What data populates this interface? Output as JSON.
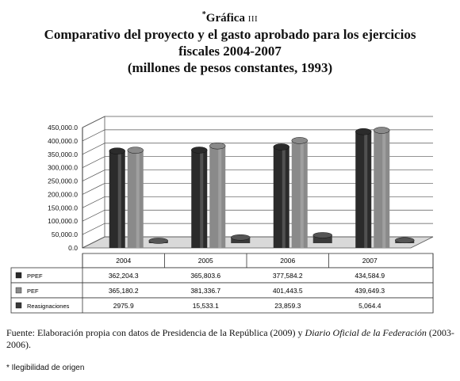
{
  "title": {
    "asterisk": "*",
    "grafica": "Gráfica",
    "numeral": "III",
    "line1": "Comparativo del proyecto y el gasto aprobado para los ejercicios",
    "line2": "fiscales 2004-2007",
    "line3": "(millones de pesos constantes, 1993)"
  },
  "chart_data": {
    "type": "bar",
    "style": "3d-clustered-column-with-data-table",
    "categories": [
      "2004",
      "2005",
      "2006",
      "2007"
    ],
    "series": [
      {
        "name": "PPEF",
        "values": [
          362204.3,
          365803.6,
          377584.2,
          434584.9
        ],
        "labels": [
          "362,204.3",
          "365,803.6",
          "377,584.2",
          "434,584.9"
        ],
        "color": "#2b2b2b",
        "marker": "■"
      },
      {
        "name": "PEF",
        "values": [
          365180.2,
          381336.7,
          401443.5,
          439649.3
        ],
        "labels": [
          "365,180.2",
          "381,336.7",
          "401,443.5",
          "439,649.3"
        ],
        "color": "#8a8a8a",
        "marker": "■"
      },
      {
        "name": "Reasignaciones",
        "values": [
          2975.9,
          15533.1,
          23859.3,
          5064.4
        ],
        "labels": [
          "2975.9",
          "15,533.1",
          "23,859.3",
          "5,064.4"
        ],
        "color": "#3a3a3a",
        "marker": "■"
      }
    ],
    "yticks": [
      "0.0",
      "50,000.0",
      "100,000.0",
      "150,000.0",
      "200,000.0",
      "250,000.0",
      "300,000.0",
      "350,000.0",
      "400,000.0",
      "450,000.0"
    ],
    "ylim": [
      0,
      450000
    ],
    "grid": true,
    "legend": "data-table-left"
  },
  "source_label": "Fuente: Elaboración propia con datos de Presidencia de la República (2009) y ",
  "source_italic1": "Diario Oficial de la Federación",
  "source_end": " (2003-2006).",
  "note": "* Ilegibilidad de origen"
}
